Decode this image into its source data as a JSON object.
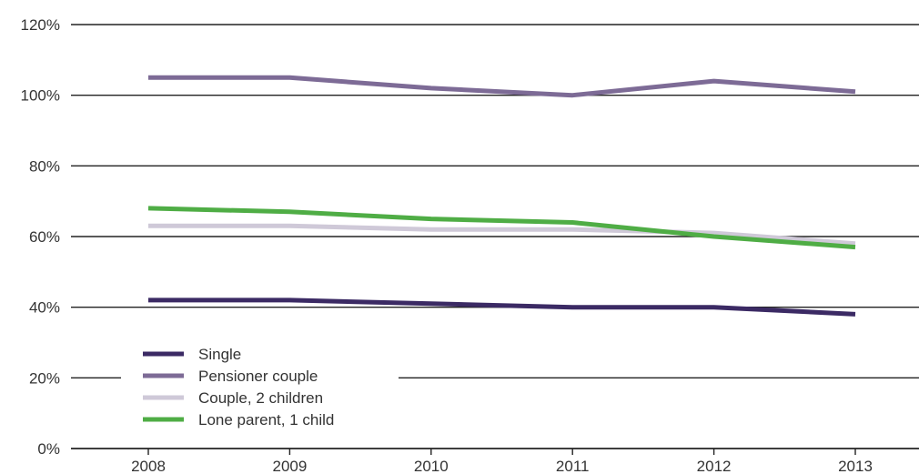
{
  "chart_data": {
    "type": "line",
    "title": "",
    "xlabel": "",
    "ylabel": "",
    "categories": [
      "2008",
      "2009",
      "2010",
      "2011",
      "2012",
      "2013"
    ],
    "ylim": [
      0,
      120
    ],
    "yticks": [
      "0%",
      "20%",
      "40%",
      "60%",
      "80%",
      "100%",
      "120%"
    ],
    "grid": "horizontal",
    "legend_position": "bottom-left",
    "series": [
      {
        "name": "Single",
        "color": "#3b2a64",
        "values": [
          42,
          42,
          41,
          40,
          40,
          38
        ]
      },
      {
        "name": "Pensioner couple",
        "color": "#7d6b96",
        "values": [
          105,
          105,
          102,
          100,
          104,
          101
        ]
      },
      {
        "name": "Couple, 2 children",
        "color": "#cfc9d8",
        "values": [
          63,
          63,
          62,
          62,
          61,
          58
        ]
      },
      {
        "name": "Lone parent, 1 child",
        "color": "#4fad45",
        "values": [
          68,
          67,
          65,
          64,
          60,
          57
        ]
      }
    ]
  }
}
